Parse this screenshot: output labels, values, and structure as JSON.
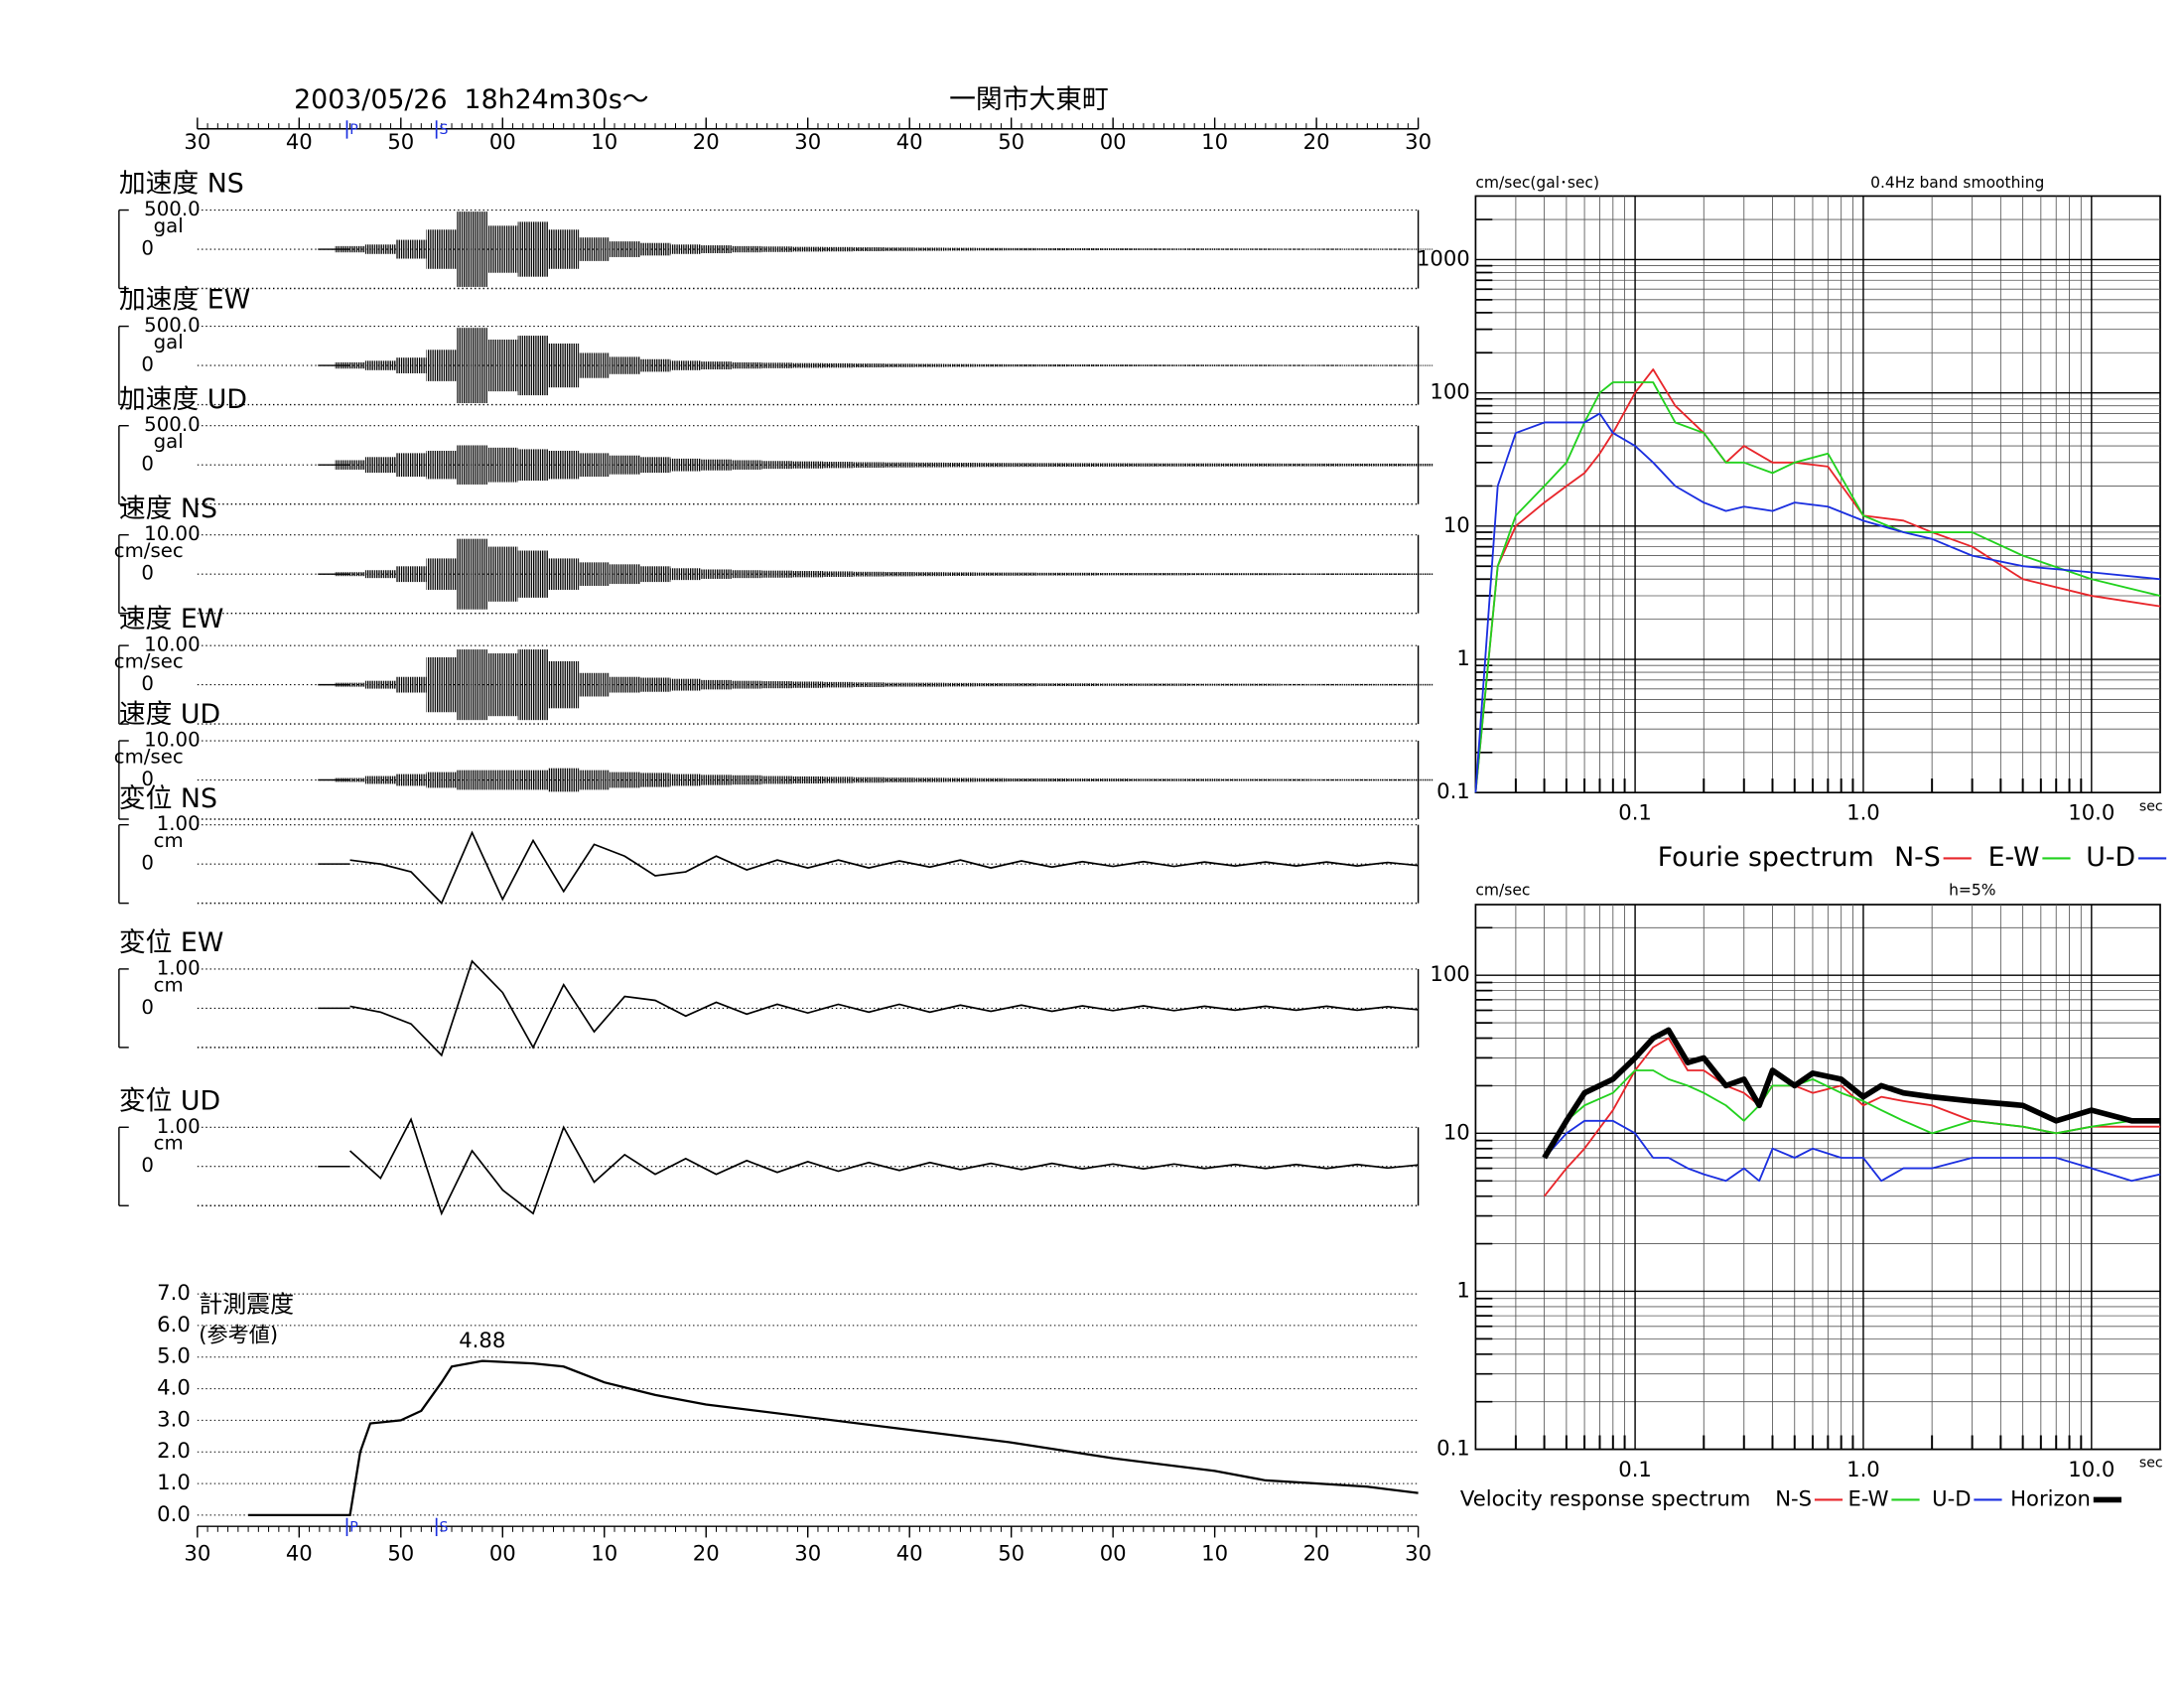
{
  "chart_data": [
    {
      "type": "waveform",
      "title": "2003/05/26  18h24m30s〜",
      "location": "一関市大東町",
      "xlim": [
        0,
        120
      ],
      "xticks": [
        {
          "value": 0,
          "label": "30"
        },
        {
          "value": 10,
          "label": "40"
        },
        {
          "value": 20,
          "label": "50"
        },
        {
          "value": 30,
          "label": "00"
        },
        {
          "value": 40,
          "label": "10"
        },
        {
          "value": 50,
          "label": "20"
        },
        {
          "value": 60,
          "label": "30"
        },
        {
          "value": 70,
          "label": "40"
        },
        {
          "value": 80,
          "label": "50"
        },
        {
          "value": 90,
          "label": "00"
        },
        {
          "value": 100,
          "label": "10"
        },
        {
          "value": 110,
          "label": "20"
        },
        {
          "value": 120,
          "label": "30"
        }
      ],
      "phases": [
        {
          "value": 14.7,
          "label": "P"
        },
        {
          "value": 23.5,
          "label": "S"
        }
      ],
      "x": [
        15,
        18,
        21,
        24,
        27,
        30,
        33,
        36,
        39,
        42,
        45,
        48,
        51,
        54,
        57,
        60,
        63,
        66,
        69,
        72,
        75,
        78,
        81,
        84,
        87,
        90,
        93,
        96,
        99,
        102,
        105,
        108,
        111,
        114,
        117,
        120
      ],
      "panels": [
        {
          "name": "加速度 NS",
          "unit": "gal",
          "style": "envelope",
          "ylim": [
            -500,
            500
          ],
          "yticks": [
            {
              "value": 500,
              "label": "500.0"
            },
            0
          ],
          "values": [
            40,
            60,
            120,
            250,
            480,
            300,
            350,
            250,
            150,
            100,
            80,
            60,
            50,
            40,
            35,
            30,
            28,
            25,
            22,
            20,
            18,
            16,
            15,
            14,
            13,
            12,
            11,
            10,
            10,
            9,
            9,
            8,
            8,
            7,
            7,
            6
          ]
        },
        {
          "name": "加速度 EW",
          "unit": "gal",
          "style": "envelope",
          "ylim": [
            -500,
            500
          ],
          "yticks": [
            {
              "value": 500,
              "label": "500.0"
            },
            0
          ],
          "values": [
            40,
            60,
            100,
            200,
            480,
            330,
            380,
            280,
            160,
            110,
            80,
            60,
            50,
            40,
            35,
            30,
            28,
            25,
            22,
            20,
            18,
            16,
            15,
            14,
            13,
            12,
            11,
            10,
            10,
            9,
            9,
            8,
            8,
            7,
            7,
            6
          ]
        },
        {
          "name": "加速度 UD",
          "unit": "gal",
          "style": "envelope",
          "ylim": [
            -500,
            500
          ],
          "yticks": [
            {
              "value": 500,
              "label": "500.0"
            },
            0
          ],
          "values": [
            60,
            100,
            150,
            180,
            250,
            220,
            200,
            180,
            150,
            120,
            100,
            80,
            70,
            60,
            50,
            45,
            40,
            35,
            32,
            30,
            28,
            26,
            25,
            24,
            23,
            22,
            21,
            20,
            20,
            19,
            19,
            18,
            18,
            17,
            17,
            16
          ]
        },
        {
          "name": "速度 NS",
          "unit": "cm/sec",
          "style": "envelope",
          "ylim": [
            -10,
            10
          ],
          "yticks": [
            {
              "value": 10,
              "label": "10.00"
            },
            0
          ],
          "values": [
            0.5,
            1,
            2,
            4,
            9,
            7,
            6,
            4,
            3,
            2.5,
            2,
            1.5,
            1.2,
            1,
            0.9,
            0.8,
            0.7,
            0.6,
            0.55,
            0.5,
            0.45,
            0.4,
            0.4,
            0.35,
            0.35,
            0.3,
            0.3,
            0.3,
            0.25,
            0.25,
            0.25,
            0.2,
            0.2,
            0.2,
            0.2,
            0.2
          ]
        },
        {
          "name": "速度 EW",
          "unit": "cm/sec",
          "style": "envelope",
          "ylim": [
            -10,
            10
          ],
          "yticks": [
            {
              "value": 10,
              "label": "10.00"
            },
            0
          ],
          "values": [
            0.5,
            1,
            2,
            7,
            9,
            8,
            9,
            6,
            3,
            2,
            1.8,
            1.5,
            1.2,
            1,
            0.9,
            0.8,
            0.7,
            0.6,
            0.5,
            0.5,
            0.45,
            0.4,
            0.4,
            0.35,
            0.35,
            0.3,
            0.3,
            0.3,
            0.25,
            0.25,
            0.25,
            0.2,
            0.2,
            0.2,
            0.2,
            0.2
          ]
        },
        {
          "name": "速度 UD",
          "unit": "cm/sec",
          "style": "envelope",
          "ylim": [
            -10,
            10
          ],
          "yticks": [
            {
              "value": 10,
              "label": "10.00"
            },
            0
          ],
          "values": [
            0.5,
            1,
            1.5,
            2,
            2.5,
            2.5,
            2.5,
            3,
            2.5,
            2,
            1.8,
            1.5,
            1.3,
            1.2,
            1.0,
            0.9,
            0.8,
            0.7,
            0.6,
            0.55,
            0.5,
            0.45,
            0.4,
            0.4,
            0.35,
            0.35,
            0.3,
            0.3,
            0.3,
            0.25,
            0.25,
            0.25,
            0.2,
            0.2,
            0.2,
            0.2
          ]
        },
        {
          "name": "変位 NS",
          "unit": "cm",
          "style": "line",
          "ylim": [
            -1,
            1
          ],
          "yticks": [
            {
              "value": 1,
              "label": "1.00"
            },
            0
          ],
          "values": [
            0.1,
            0.0,
            -0.2,
            -1.0,
            0.8,
            -0.9,
            0.6,
            -0.7,
            0.5,
            0.2,
            -0.3,
            -0.2,
            0.2,
            -0.15,
            0.1,
            -0.1,
            0.1,
            -0.1,
            0.08,
            -0.08,
            0.1,
            -0.1,
            0.08,
            -0.08,
            0.06,
            -0.06,
            0.06,
            -0.06,
            0.05,
            -0.05,
            0.05,
            -0.05,
            0.05,
            -0.05,
            0.04,
            -0.04
          ]
        },
        {
          "name": "変位 EW",
          "unit": "cm",
          "style": "line",
          "ylim": [
            -1,
            1
          ],
          "yticks": [
            {
              "value": 1,
              "label": "1.00"
            },
            0
          ],
          "values": [
            0.05,
            -0.1,
            -0.4,
            -1.2,
            1.2,
            0.4,
            -1.0,
            0.6,
            -0.6,
            0.3,
            0.2,
            -0.2,
            0.15,
            -0.15,
            0.1,
            -0.12,
            0.1,
            -0.1,
            0.1,
            -0.1,
            0.08,
            -0.08,
            0.08,
            -0.08,
            0.06,
            -0.06,
            0.06,
            -0.06,
            0.05,
            -0.05,
            0.05,
            -0.05,
            0.05,
            -0.05,
            0.04,
            -0.04
          ]
        },
        {
          "name": "変位 UD",
          "unit": "cm",
          "style": "line",
          "ylim": [
            -1,
            1
          ],
          "yticks": [
            {
              "value": 1,
              "label": "1.00"
            },
            0
          ],
          "values": [
            0.4,
            -0.3,
            1.2,
            -1.2,
            0.4,
            -0.6,
            -1.2,
            1.0,
            -0.4,
            0.3,
            -0.2,
            0.2,
            -0.2,
            0.15,
            -0.15,
            0.12,
            -0.12,
            0.1,
            -0.1,
            0.1,
            -0.08,
            0.08,
            -0.08,
            0.08,
            -0.06,
            0.06,
            -0.06,
            0.06,
            -0.05,
            0.05,
            -0.05,
            0.05,
            -0.05,
            0.05,
            -0.04,
            0.04
          ]
        }
      ]
    },
    {
      "type": "line",
      "title": "計測震度",
      "subtitle": "(参考値)",
      "color": "#000000",
      "xlim": [
        0,
        120
      ],
      "xticks": [
        {
          "value": 0,
          "label": "30"
        },
        {
          "value": 10,
          "label": "40"
        },
        {
          "value": 20,
          "label": "50"
        },
        {
          "value": 30,
          "label": "00"
        },
        {
          "value": 40,
          "label": "10"
        },
        {
          "value": 50,
          "label": "20"
        },
        {
          "value": 60,
          "label": "30"
        },
        {
          "value": 70,
          "label": "40"
        },
        {
          "value": 80,
          "label": "50"
        },
        {
          "value": 90,
          "label": "00"
        },
        {
          "value": 100,
          "label": "10"
        },
        {
          "value": 110,
          "label": "20"
        },
        {
          "value": 120,
          "label": "30"
        }
      ],
      "phases": [
        {
          "value": 14.7,
          "label": "P"
        },
        {
          "value": 23.5,
          "label": "S"
        }
      ],
      "ylim": [
        0,
        7
      ],
      "yticks": [
        {
          "value": 0,
          "label": "0.0"
        },
        {
          "value": 1,
          "label": "1.0"
        },
        {
          "value": 2,
          "label": "2.0"
        },
        {
          "value": 3,
          "label": "3.0"
        },
        {
          "value": 4,
          "label": "4.0"
        },
        {
          "value": 5,
          "label": "5.0"
        },
        {
          "value": 6,
          "label": "6.0"
        },
        {
          "value": 7,
          "label": "7.0"
        }
      ],
      "grid": true,
      "x": [
        5,
        15,
        16,
        17,
        20,
        22,
        24,
        25,
        28,
        33,
        36,
        40,
        45,
        50,
        60,
        70,
        80,
        90,
        100,
        105,
        110,
        115,
        120
      ],
      "values": [
        0,
        0,
        2.0,
        2.9,
        3.0,
        3.3,
        4.2,
        4.7,
        4.88,
        4.8,
        4.7,
        4.2,
        3.8,
        3.5,
        3.1,
        2.7,
        2.3,
        1.8,
        1.4,
        1.1,
        1.0,
        0.9,
        0.7
      ],
      "value_labels": [
        null,
        null,
        null,
        null,
        null,
        null,
        null,
        null,
        "4.88",
        null,
        null,
        null,
        null,
        null,
        null,
        null,
        null,
        null,
        null,
        null,
        null,
        null,
        null
      ]
    },
    {
      "type": "line",
      "title": "Fourie spectrum",
      "y_label": "cm/sec(gal･sec)",
      "note": "0.4Hz band smoothing",
      "x_label": "sec",
      "xscale": "log",
      "yscale": "log",
      "grid": true,
      "xlim": [
        0.02,
        20
      ],
      "ylim": [
        0.1,
        3000
      ],
      "xticks": [
        0.1,
        {
          "value": 1,
          "label": "1.0"
        },
        {
          "value": 10,
          "label": "10.0"
        }
      ],
      "yticks": [
        0.1,
        1,
        10,
        100,
        1000
      ],
      "x": [
        0.02,
        0.025,
        0.03,
        0.04,
        0.05,
        0.06,
        0.07,
        0.08,
        0.1,
        0.12,
        0.15,
        0.2,
        0.25,
        0.3,
        0.4,
        0.5,
        0.7,
        1.0,
        1.5,
        2,
        3,
        5,
        10,
        20
      ],
      "series": [
        {
          "name": "N-S",
          "color": "#e8262b",
          "values": [
            0.1,
            5,
            10,
            15,
            20,
            25,
            35,
            50,
            100,
            150,
            80,
            50,
            30,
            40,
            30,
            30,
            28,
            12,
            11,
            9,
            7,
            4,
            3,
            2.5
          ]
        },
        {
          "name": "E-W",
          "color": "#22d11e",
          "values": [
            0.1,
            5,
            12,
            20,
            30,
            60,
            100,
            120,
            120,
            120,
            60,
            50,
            30,
            30,
            25,
            30,
            35,
            12,
            9,
            9,
            9,
            6,
            4,
            3
          ]
        },
        {
          "name": "U-D",
          "color": "#1b2fe0",
          "values": [
            0.1,
            20,
            50,
            60,
            60,
            60,
            70,
            50,
            40,
            30,
            20,
            15,
            13,
            14,
            13,
            15,
            14,
            11,
            9,
            8,
            6,
            5,
            4.5,
            4
          ]
        }
      ]
    },
    {
      "type": "line",
      "title": "Velocity response spectrum",
      "y_label": "cm/sec",
      "note": "h=5%",
      "x_label": "sec",
      "xscale": "log",
      "yscale": "log",
      "grid": true,
      "xlim": [
        0.02,
        20
      ],
      "ylim": [
        0.1,
        280
      ],
      "xticks": [
        0.1,
        {
          "value": 1,
          "label": "1.0"
        },
        {
          "value": 10,
          "label": "10.0"
        }
      ],
      "yticks": [
        0.1,
        1,
        10,
        100
      ],
      "x": [
        0.04,
        0.05,
        0.06,
        0.08,
        0.1,
        0.12,
        0.14,
        0.17,
        0.2,
        0.25,
        0.3,
        0.35,
        0.4,
        0.5,
        0.6,
        0.8,
        1.0,
        1.2,
        1.5,
        2,
        3,
        5,
        7,
        10,
        15,
        20
      ],
      "series": [
        {
          "name": "N-S",
          "color": "#e8262b",
          "values": [
            4,
            6,
            8,
            14,
            25,
            35,
            40,
            25,
            25,
            20,
            18,
            15,
            20,
            20,
            18,
            20,
            15,
            17,
            16,
            15,
            12,
            11,
            10,
            11,
            11,
            11
          ]
        },
        {
          "name": "E-W",
          "color": "#22d11e",
          "values": [
            7,
            12,
            15,
            18,
            25,
            25,
            22,
            20,
            18,
            15,
            12,
            15,
            20,
            20,
            22,
            18,
            16,
            14,
            12,
            10,
            12,
            11,
            10,
            11,
            12,
            12
          ]
        },
        {
          "name": "U-D",
          "color": "#1b2fe0",
          "values": [
            7,
            10,
            12,
            12,
            10,
            7,
            7,
            6,
            5.5,
            5,
            6,
            5,
            8,
            7,
            8,
            7,
            7,
            5,
            6,
            6,
            7,
            7,
            7,
            6,
            5,
            5.5
          ]
        },
        {
          "name": "Horizon",
          "color": "#000000",
          "values": [
            7,
            12,
            18,
            22,
            30,
            40,
            45,
            28,
            30,
            20,
            22,
            15,
            25,
            20,
            24,
            22,
            17,
            20,
            18,
            17,
            16,
            15,
            12,
            14,
            12,
            12
          ]
        }
      ]
    }
  ]
}
